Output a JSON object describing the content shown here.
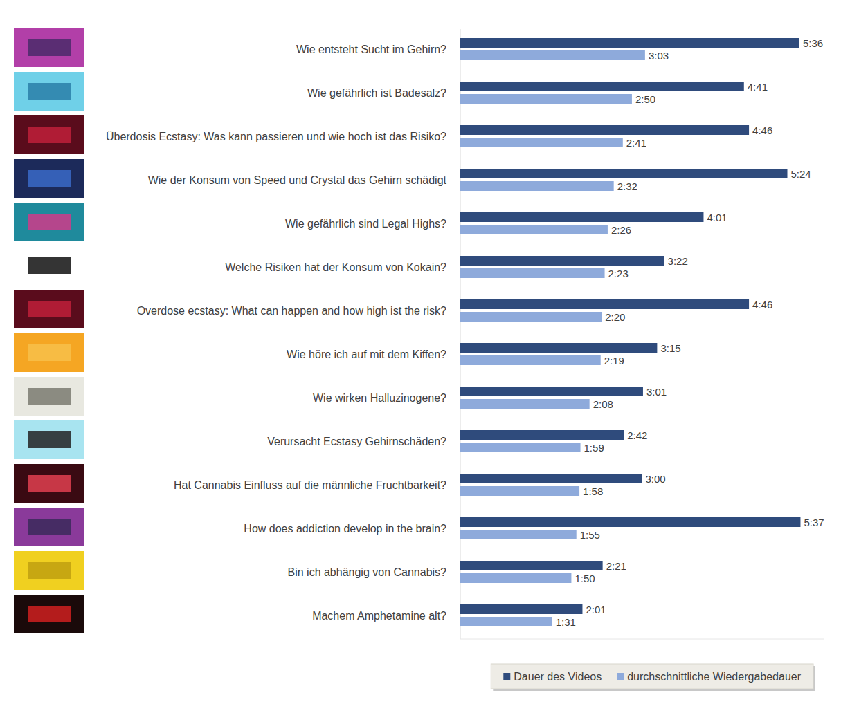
{
  "chart_data": {
    "type": "bar",
    "orientation": "horizontal",
    "data_labels": true,
    "tick_labels": false,
    "grid": false,
    "legend": "bottom-right",
    "categories": [
      "Wie entsteht Sucht im Gehirn?",
      "Wie gefährlich ist Badesalz?",
      "Überdosis Ecstasy: Was kann passieren und wie hoch ist das Risiko?",
      "Wie der Konsum von Speed und Crystal das Gehirn schädigt",
      "Wie gefährlich sind Legal Highs?",
      "Welche Risiken hat der Konsum von Kokain?",
      "Overdose ecstasy: What can happen and how high ist the risk?",
      "Wie höre ich auf mit dem Kiffen?",
      "Wie wirken Halluzinogene?",
      "Verursacht Ecstasy Gehirnschäden?",
      "Hat Cannabis Einfluss auf die männliche Fruchtbarkeit?",
      "How does addiction develop in the brain?",
      "Bin ich abhängig von Cannabis?",
      "Machem Amphetamine alt?"
    ],
    "xlim": [
      0,
      360
    ],
    "xticks": [],
    "series": [
      {
        "name": "Dauer des Videos",
        "color": "#2f4b7c",
        "values": [
          336,
          281,
          286,
          324,
          241,
          202,
          286,
          195,
          181,
          162,
          180,
          337,
          141,
          121
        ],
        "value_labels": [
          "5:36",
          "4:41",
          "4:46",
          "5:24",
          "4:01",
          "3:22",
          "4:46",
          "3:15",
          "3:01",
          "2:42",
          "3:00",
          "5:37",
          "2:21",
          "2:01"
        ]
      },
      {
        "name": "durchschnittliche Wiedergabedauer",
        "color": "#8eaadb",
        "values": [
          183,
          170,
          161,
          152,
          146,
          143,
          140,
          139,
          128,
          119,
          118,
          115,
          110,
          91
        ],
        "value_labels": [
          "3:03",
          "2:50",
          "2:41",
          "2:32",
          "2:26",
          "2:23",
          "2:20",
          "2:19",
          "2:08",
          "1:59",
          "1:58",
          "1:55",
          "1:50",
          "1:31"
        ]
      }
    ]
  }
}
